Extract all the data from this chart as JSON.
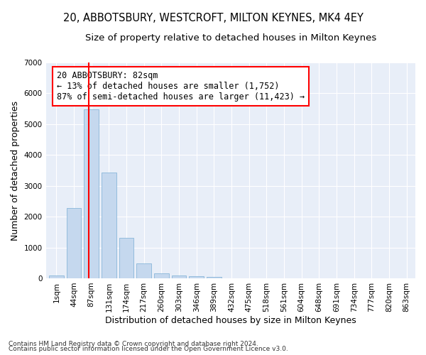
{
  "title": "20, ABBOTSBURY, WESTCROFT, MILTON KEYNES, MK4 4EY",
  "subtitle": "Size of property relative to detached houses in Milton Keynes",
  "xlabel": "Distribution of detached houses by size in Milton Keynes",
  "ylabel": "Number of detached properties",
  "footer_line1": "Contains HM Land Registry data © Crown copyright and database right 2024.",
  "footer_line2": "Contains public sector information licensed under the Open Government Licence v3.0.",
  "annotation_title": "20 ABBOTSBURY: 82sqm",
  "annotation_line1": "← 13% of detached houses are smaller (1,752)",
  "annotation_line2": "87% of semi-detached houses are larger (11,423) →",
  "bar_color": "#c5d8ee",
  "bar_edge_color": "#7aadd4",
  "vline_color": "red",
  "vline_x": 1.85,
  "categories": [
    "1sqm",
    "44sqm",
    "87sqm",
    "131sqm",
    "174sqm",
    "217sqm",
    "260sqm",
    "303sqm",
    "346sqm",
    "389sqm",
    "432sqm",
    "475sqm",
    "518sqm",
    "561sqm",
    "604sqm",
    "648sqm",
    "691sqm",
    "734sqm",
    "777sqm",
    "820sqm",
    "863sqm"
  ],
  "values": [
    100,
    2270,
    5470,
    3440,
    1310,
    480,
    160,
    95,
    70,
    45,
    0,
    0,
    0,
    0,
    0,
    0,
    0,
    0,
    0,
    0,
    0
  ],
  "ylim": [
    0,
    7000
  ],
  "yticks": [
    0,
    1000,
    2000,
    3000,
    4000,
    5000,
    6000,
    7000
  ],
  "background_color": "#e8eef8",
  "title_fontsize": 10.5,
  "subtitle_fontsize": 9.5,
  "axis_label_fontsize": 9,
  "tick_fontsize": 7.5,
  "footer_fontsize": 6.5,
  "annotation_fontsize": 8.5
}
